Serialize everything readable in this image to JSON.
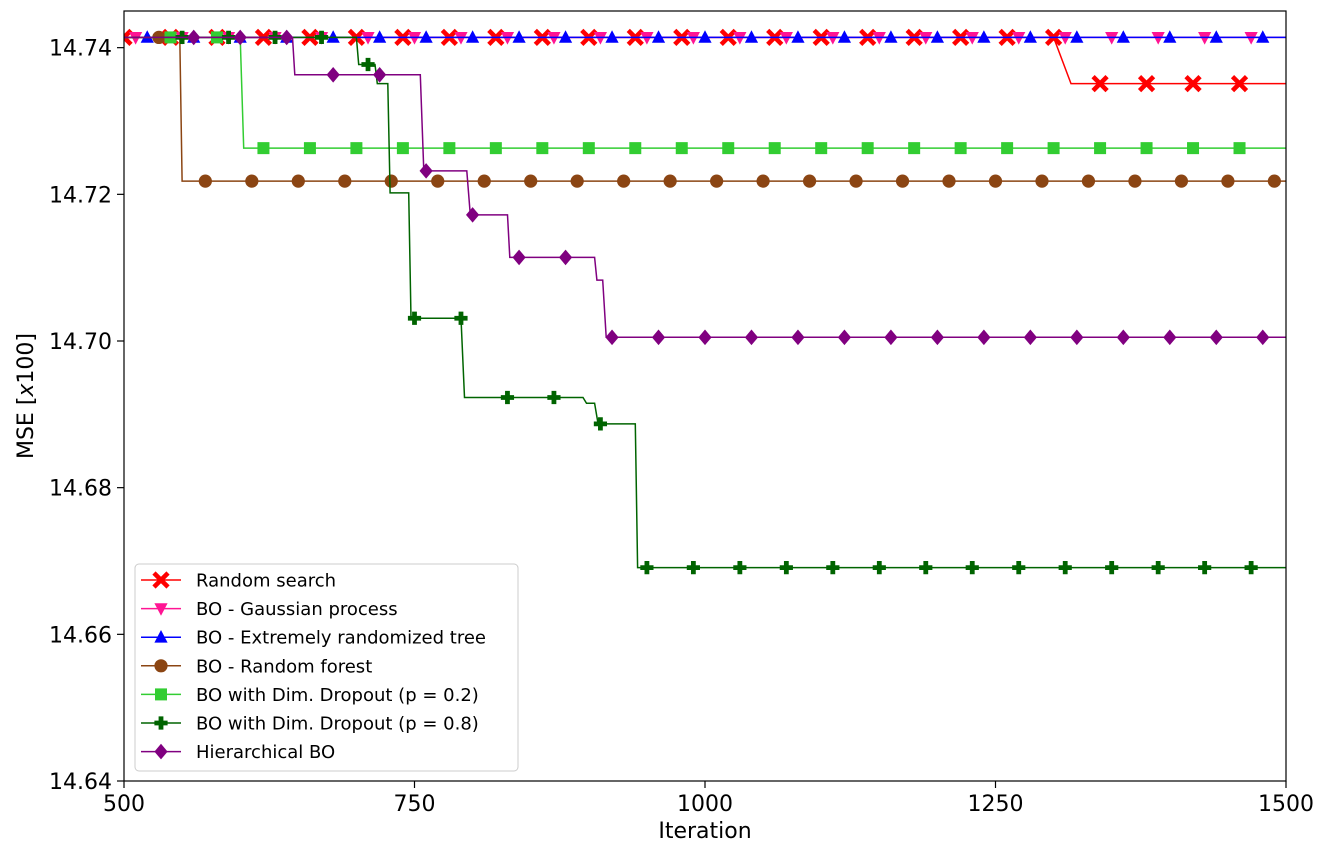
{
  "chart_data": {
    "type": "line",
    "title": "",
    "xlabel": "Iteration",
    "ylabel_prefix": "MSE [",
    "ylabel_italic": "x",
    "ylabel_suffix": "100]",
    "xlim": [
      500,
      1500
    ],
    "ylim": [
      14.64,
      14.745
    ],
    "xticks": [
      500,
      750,
      1000,
      1250,
      1500
    ],
    "xtick_labels": [
      "500",
      "750",
      "1000",
      "1250",
      "1500"
    ],
    "yticks": [
      14.64,
      14.66,
      14.68,
      14.7,
      14.72,
      14.74
    ],
    "ytick_labels": [
      "14.64",
      "14.66",
      "14.68",
      "14.70",
      "14.72",
      "14.74"
    ],
    "grid": false,
    "legend_position": "lower-left",
    "series": [
      {
        "name": "Random search",
        "color": "#ff0000",
        "marker": "x-filled",
        "steps": [
          [
            500,
            14.7414
          ],
          [
            1300,
            14.7414
          ],
          [
            1315,
            14.7351
          ],
          [
            1500,
            14.7351
          ]
        ],
        "markers_x": [
          500,
          540,
          580,
          620,
          660,
          700,
          740,
          780,
          820,
          860,
          900,
          940,
          980,
          1020,
          1060,
          1100,
          1140,
          1180,
          1220,
          1260,
          1300,
          1340,
          1380,
          1420,
          1460
        ]
      },
      {
        "name": "BO - Gaussian process",
        "color": "#ff1493",
        "marker": "triangle-down",
        "steps": [
          [
            500,
            14.7414
          ],
          [
            1500,
            14.7414
          ]
        ],
        "markers_x": [
          510,
          550,
          590,
          630,
          670,
          710,
          750,
          790,
          830,
          870,
          910,
          950,
          990,
          1030,
          1070,
          1110,
          1150,
          1190,
          1230,
          1270,
          1310,
          1350,
          1390,
          1430,
          1470
        ]
      },
      {
        "name": "BO - Extremely randomized tree",
        "color": "#0000ff",
        "marker": "triangle-up",
        "steps": [
          [
            500,
            14.7414
          ],
          [
            1500,
            14.7414
          ]
        ],
        "markers_x": [
          520,
          560,
          600,
          640,
          680,
          720,
          760,
          800,
          840,
          880,
          920,
          960,
          1000,
          1040,
          1080,
          1120,
          1160,
          1200,
          1240,
          1280,
          1320,
          1360,
          1400,
          1440,
          1480
        ]
      },
      {
        "name": "BO - Random forest",
        "color": "#8b4513",
        "marker": "circle",
        "steps": [
          [
            500,
            14.7414
          ],
          [
            548,
            14.7414
          ],
          [
            550,
            14.7218
          ],
          [
            1500,
            14.7218
          ]
        ],
        "markers_x": [
          530,
          570,
          610,
          650,
          690,
          730,
          770,
          810,
          850,
          890,
          930,
          970,
          1010,
          1050,
          1090,
          1130,
          1170,
          1210,
          1250,
          1290,
          1330,
          1370,
          1410,
          1450,
          1490
        ]
      },
      {
        "name": "BO with Dim. Dropout (p = 0.2)",
        "color": "#32cd32",
        "marker": "square",
        "steps": [
          [
            500,
            14.7414
          ],
          [
            600,
            14.7414
          ],
          [
            603,
            14.7263
          ],
          [
            1500,
            14.7263
          ]
        ],
        "markers_x": [
          540,
          580,
          620,
          660,
          700,
          740,
          780,
          820,
          860,
          900,
          940,
          980,
          1020,
          1060,
          1100,
          1140,
          1180,
          1220,
          1260,
          1300,
          1340,
          1380,
          1420,
          1460
        ]
      },
      {
        "name": "BO with Dim. Dropout (p = 0.8)",
        "color": "#006400",
        "marker": "plus-filled",
        "steps": [
          [
            500,
            14.7414
          ],
          [
            700,
            14.7414
          ],
          [
            702,
            14.7377
          ],
          [
            716,
            14.7377
          ],
          [
            718,
            14.7351
          ],
          [
            727,
            14.7351
          ],
          [
            729,
            14.7202
          ],
          [
            745,
            14.7202
          ],
          [
            747,
            14.7031
          ],
          [
            790,
            14.7031
          ],
          [
            793,
            14.6923
          ],
          [
            895,
            14.6923
          ],
          [
            898,
            14.6915
          ],
          [
            905,
            14.6915
          ],
          [
            908,
            14.6887
          ],
          [
            940,
            14.6887
          ],
          [
            942,
            14.6691
          ],
          [
            1500,
            14.6691
          ]
        ],
        "markers_x": [
          550,
          590,
          630,
          670,
          710,
          750,
          790,
          830,
          870,
          910,
          950,
          990,
          1030,
          1070,
          1110,
          1150,
          1190,
          1230,
          1270,
          1310,
          1350,
          1390,
          1430,
          1470
        ]
      },
      {
        "name": "Hierarchical BO",
        "color": "#800080",
        "marker": "diamond",
        "steps": [
          [
            500,
            14.7414
          ],
          [
            645,
            14.7414
          ],
          [
            647,
            14.7363
          ],
          [
            755,
            14.7363
          ],
          [
            758,
            14.7232
          ],
          [
            795,
            14.7232
          ],
          [
            798,
            14.7172
          ],
          [
            830,
            14.7172
          ],
          [
            832,
            14.7114
          ],
          [
            905,
            14.7114
          ],
          [
            907,
            14.7083
          ],
          [
            912,
            14.7083
          ],
          [
            915,
            14.7005
          ],
          [
            1500,
            14.7005
          ]
        ],
        "markers_x": [
          560,
          600,
          640,
          680,
          720,
          760,
          800,
          840,
          880,
          920,
          960,
          1000,
          1040,
          1080,
          1120,
          1160,
          1200,
          1240,
          1280,
          1320,
          1360,
          1400,
          1440,
          1480
        ]
      }
    ]
  }
}
